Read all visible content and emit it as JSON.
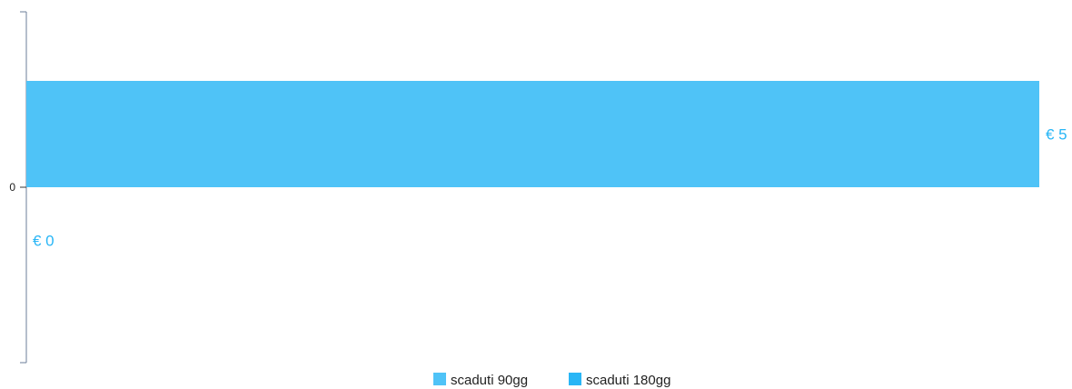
{
  "chart_data": {
    "type": "bar",
    "orientation": "horizontal",
    "categories": [
      "0"
    ],
    "series": [
      {
        "name": "scaduti 90gg",
        "values": [
          5
        ],
        "label": "€ 5",
        "color": "#4fc3f7"
      },
      {
        "name": "scaduti 180gg",
        "values": [
          0
        ],
        "label": "€ 0",
        "color": "#29b6f6"
      }
    ],
    "xlim": [
      0,
      5
    ],
    "grid": false,
    "legend_position": "bottom",
    "label_color": "#29b6f6",
    "axis_color": "#6b7d99"
  }
}
